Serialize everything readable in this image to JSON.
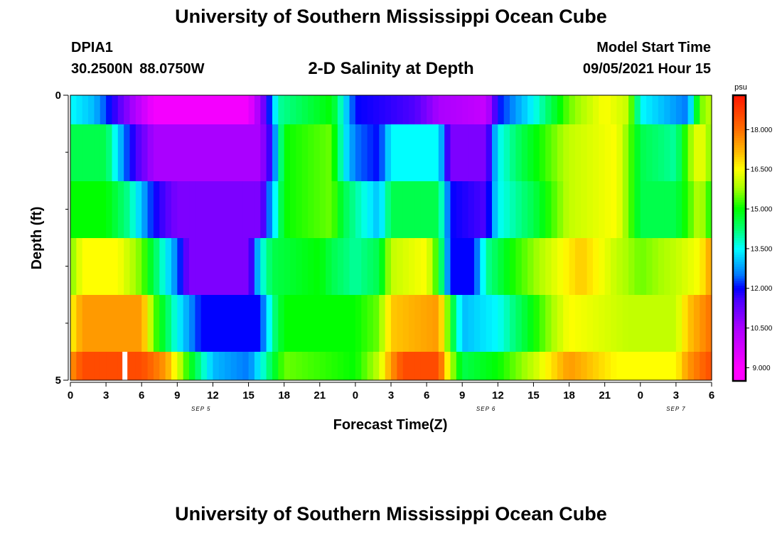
{
  "header": {
    "title": "University of Southern Mississippi Ocean Cube",
    "station": "DPIA1",
    "coords": "30.2500N  88.0750W",
    "subtitle": "2-D Salinity at Depth",
    "start_label": "Model Start Time",
    "start_value": "09/05/2021 Hour 15"
  },
  "footer": {
    "title": "University of Southern Mississippi Ocean Cube"
  },
  "chart_data": {
    "type": "heatmap",
    "xlabel": "Forecast Time(Z)",
    "ylabel": "Depth (ft)",
    "x_tick_labels": [
      "0",
      "3",
      "6",
      "9",
      "12",
      "15",
      "18",
      "21",
      "0",
      "3",
      "6",
      "9",
      "12",
      "15",
      "18",
      "21",
      "0",
      "3",
      "6"
    ],
    "date_labels": [
      {
        "label": "SEP 5",
        "hour_index": 11
      },
      {
        "label": "SEP 6",
        "hour_index": 35
      },
      {
        "label": "SEP 7",
        "hour_index": 51
      }
    ],
    "ylim": [
      0,
      5
    ],
    "y_tick_labels": [
      "0",
      "5"
    ],
    "hours": 54,
    "depth_levels": 5,
    "colorbar": {
      "unit": "psu",
      "min": 8.5,
      "max": 19.3,
      "tick_labels": [
        "9.000",
        "10.500",
        "12.000",
        "13.500",
        "15.000",
        "16.500",
        "18.000"
      ],
      "tick_values": [
        9.0,
        10.5,
        12.0,
        13.5,
        15.0,
        16.5,
        18.0
      ]
    },
    "salinity_anchors": [
      {
        "depth": "0-1",
        "points": [
          [
            0,
            13.5
          ],
          [
            2,
            13.0
          ],
          [
            4,
            11.5
          ],
          [
            7,
            9.2
          ],
          [
            15,
            9.2
          ],
          [
            16.5,
            11.5
          ],
          [
            17.5,
            14.0
          ],
          [
            22,
            15.0
          ],
          [
            23,
            13.5
          ],
          [
            24,
            12.0
          ],
          [
            29,
            11.5
          ],
          [
            31,
            10.5
          ],
          [
            35,
            10.0
          ],
          [
            36,
            12.0
          ],
          [
            39,
            13.5
          ],
          [
            42,
            15.5
          ],
          [
            45,
            16.5
          ],
          [
            47,
            16.0
          ],
          [
            48,
            13.5
          ],
          [
            52,
            12.5
          ],
          [
            53,
            15.5
          ],
          [
            54,
            16.0
          ]
        ]
      },
      {
        "depth": "1-2",
        "points": [
          [
            0,
            14.5
          ],
          [
            3,
            14.5
          ],
          [
            5,
            12.0
          ],
          [
            7,
            10.5
          ],
          [
            16,
            10.5
          ],
          [
            17,
            12.0
          ],
          [
            18,
            15.0
          ],
          [
            22,
            15.5
          ],
          [
            23,
            13.5
          ],
          [
            24,
            12.5
          ],
          [
            26,
            12.0
          ],
          [
            27,
            13.5
          ],
          [
            31,
            13.5
          ],
          [
            32,
            11.0
          ],
          [
            35,
            11.0
          ],
          [
            36,
            13.5
          ],
          [
            38,
            14.5
          ],
          [
            42,
            16.0
          ],
          [
            46,
            16.5
          ],
          [
            48,
            14.5
          ],
          [
            51,
            14.0
          ],
          [
            52,
            15.5
          ],
          [
            53,
            16.5
          ],
          [
            54,
            15.5
          ]
        ]
      },
      {
        "depth": "2-3",
        "points": [
          [
            0,
            15.0
          ],
          [
            3,
            15.0
          ],
          [
            5,
            14.0
          ],
          [
            7,
            12.0
          ],
          [
            9,
            11.0
          ],
          [
            16,
            11.0
          ],
          [
            17,
            13.0
          ],
          [
            18,
            15.0
          ],
          [
            22,
            15.5
          ],
          [
            23,
            14.5
          ],
          [
            26,
            13.0
          ],
          [
            27,
            14.5
          ],
          [
            31,
            14.5
          ],
          [
            32,
            12.0
          ],
          [
            35,
            11.5
          ],
          [
            36,
            13.5
          ],
          [
            39,
            14.5
          ],
          [
            42,
            16.0
          ],
          [
            46,
            16.5
          ],
          [
            48,
            14.5
          ],
          [
            51,
            14.5
          ],
          [
            53,
            16.0
          ],
          [
            54,
            15.0
          ]
        ]
      },
      {
        "depth": "3-4",
        "points": [
          [
            0,
            15.5
          ],
          [
            1,
            16.5
          ],
          [
            4,
            16.5
          ],
          [
            6,
            15.5
          ],
          [
            9,
            12.5
          ],
          [
            10,
            11.0
          ],
          [
            15,
            11.0
          ],
          [
            16,
            13.5
          ],
          [
            17,
            14.5
          ],
          [
            21,
            15.0
          ],
          [
            22,
            14.5
          ],
          [
            24,
            14.0
          ],
          [
            26,
            14.5
          ],
          [
            27,
            16.0
          ],
          [
            30,
            16.5
          ],
          [
            31,
            15.0
          ],
          [
            32,
            12.0
          ],
          [
            34,
            12.0
          ],
          [
            35,
            14.0
          ],
          [
            37,
            15.0
          ],
          [
            40,
            16.0
          ],
          [
            43,
            17.0
          ],
          [
            46,
            16.0
          ],
          [
            48,
            15.5
          ],
          [
            51,
            16.0
          ],
          [
            53,
            16.5
          ],
          [
            54,
            17.5
          ]
        ]
      },
      {
        "depth": "4-5",
        "points": [
          [
            0,
            16.5
          ],
          [
            1,
            17.5
          ],
          [
            6,
            17.5
          ],
          [
            7,
            15.5
          ],
          [
            9,
            13.5
          ],
          [
            11,
            12.0
          ],
          [
            16,
            12.0
          ],
          [
            17,
            14.0
          ],
          [
            18,
            15.0
          ],
          [
            24,
            15.0
          ],
          [
            26,
            15.5
          ],
          [
            27,
            17.0
          ],
          [
            31,
            17.5
          ],
          [
            32,
            15.0
          ],
          [
            33,
            13.0
          ],
          [
            36,
            13.5
          ],
          [
            39,
            15.0
          ],
          [
            42,
            16.5
          ],
          [
            47,
            16.0
          ],
          [
            51,
            16.0
          ],
          [
            52,
            17.0
          ],
          [
            54,
            18.0
          ]
        ]
      },
      {
        "depth": "5",
        "points": [
          [
            0,
            17.5
          ],
          [
            1,
            18.5
          ],
          [
            6,
            18.5
          ],
          [
            8,
            17.5
          ],
          [
            10,
            15.0
          ],
          [
            12,
            13.0
          ],
          [
            15,
            12.5
          ],
          [
            17,
            14.5
          ],
          [
            18,
            15.5
          ],
          [
            24,
            15.0
          ],
          [
            26,
            16.0
          ],
          [
            27,
            17.5
          ],
          [
            28,
            18.5
          ],
          [
            31,
            18.5
          ],
          [
            32,
            16.0
          ],
          [
            33,
            14.5
          ],
          [
            36,
            15.0
          ],
          [
            39,
            16.0
          ],
          [
            42,
            17.5
          ],
          [
            46,
            16.5
          ],
          [
            51,
            16.5
          ],
          [
            52,
            17.5
          ],
          [
            54,
            18.5
          ]
        ]
      }
    ],
    "missing": [
      {
        "depth_row": 5,
        "hour": 4.5
      }
    ]
  }
}
